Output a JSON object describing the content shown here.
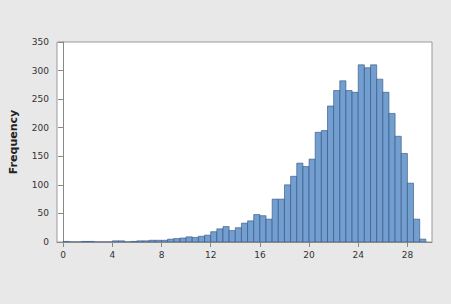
{
  "chart_data": {
    "type": "histogram",
    "y_label": "Frequency",
    "bins": [
      0,
      0.5,
      1,
      1.5,
      2,
      2.5,
      3,
      3.5,
      4,
      4.5,
      5,
      5.5,
      6,
      6.5,
      7,
      7.5,
      8,
      8.5,
      9,
      9.5,
      10,
      10.5,
      11,
      11.5,
      12,
      12.5,
      13,
      13.5,
      14,
      14.5,
      15,
      15.5,
      16,
      16.5,
      17,
      17.5,
      18,
      18.5,
      19,
      19.5,
      20,
      20.5,
      21,
      21.5,
      22,
      22.5,
      23,
      23.5,
      24,
      24.5,
      25,
      25.5,
      26,
      26.5,
      27,
      27.5,
      28,
      28.5,
      29,
      29.5
    ],
    "values": [
      1,
      0,
      0,
      1,
      1,
      0,
      0,
      0,
      2,
      2,
      0,
      1,
      2,
      2,
      3,
      3,
      3,
      5,
      6,
      7,
      9,
      8,
      10,
      12,
      18,
      23,
      27,
      20,
      25,
      33,
      37,
      48,
      46,
      40,
      75,
      75,
      100,
      115,
      138,
      132,
      145,
      192,
      195,
      238,
      265,
      282,
      265,
      262,
      310,
      305,
      310,
      285,
      262,
      225,
      185,
      155,
      103,
      40,
      5
    ],
    "color": "#729fcf",
    "xlim": [
      -0.5,
      30
    ],
    "xticks": [
      0,
      4,
      8,
      12,
      16,
      20,
      24,
      28
    ],
    "ylim": [
      0,
      350
    ],
    "yticks": [
      0,
      50,
      100,
      150,
      200,
      250,
      300,
      350
    ],
    "grid": false
  }
}
